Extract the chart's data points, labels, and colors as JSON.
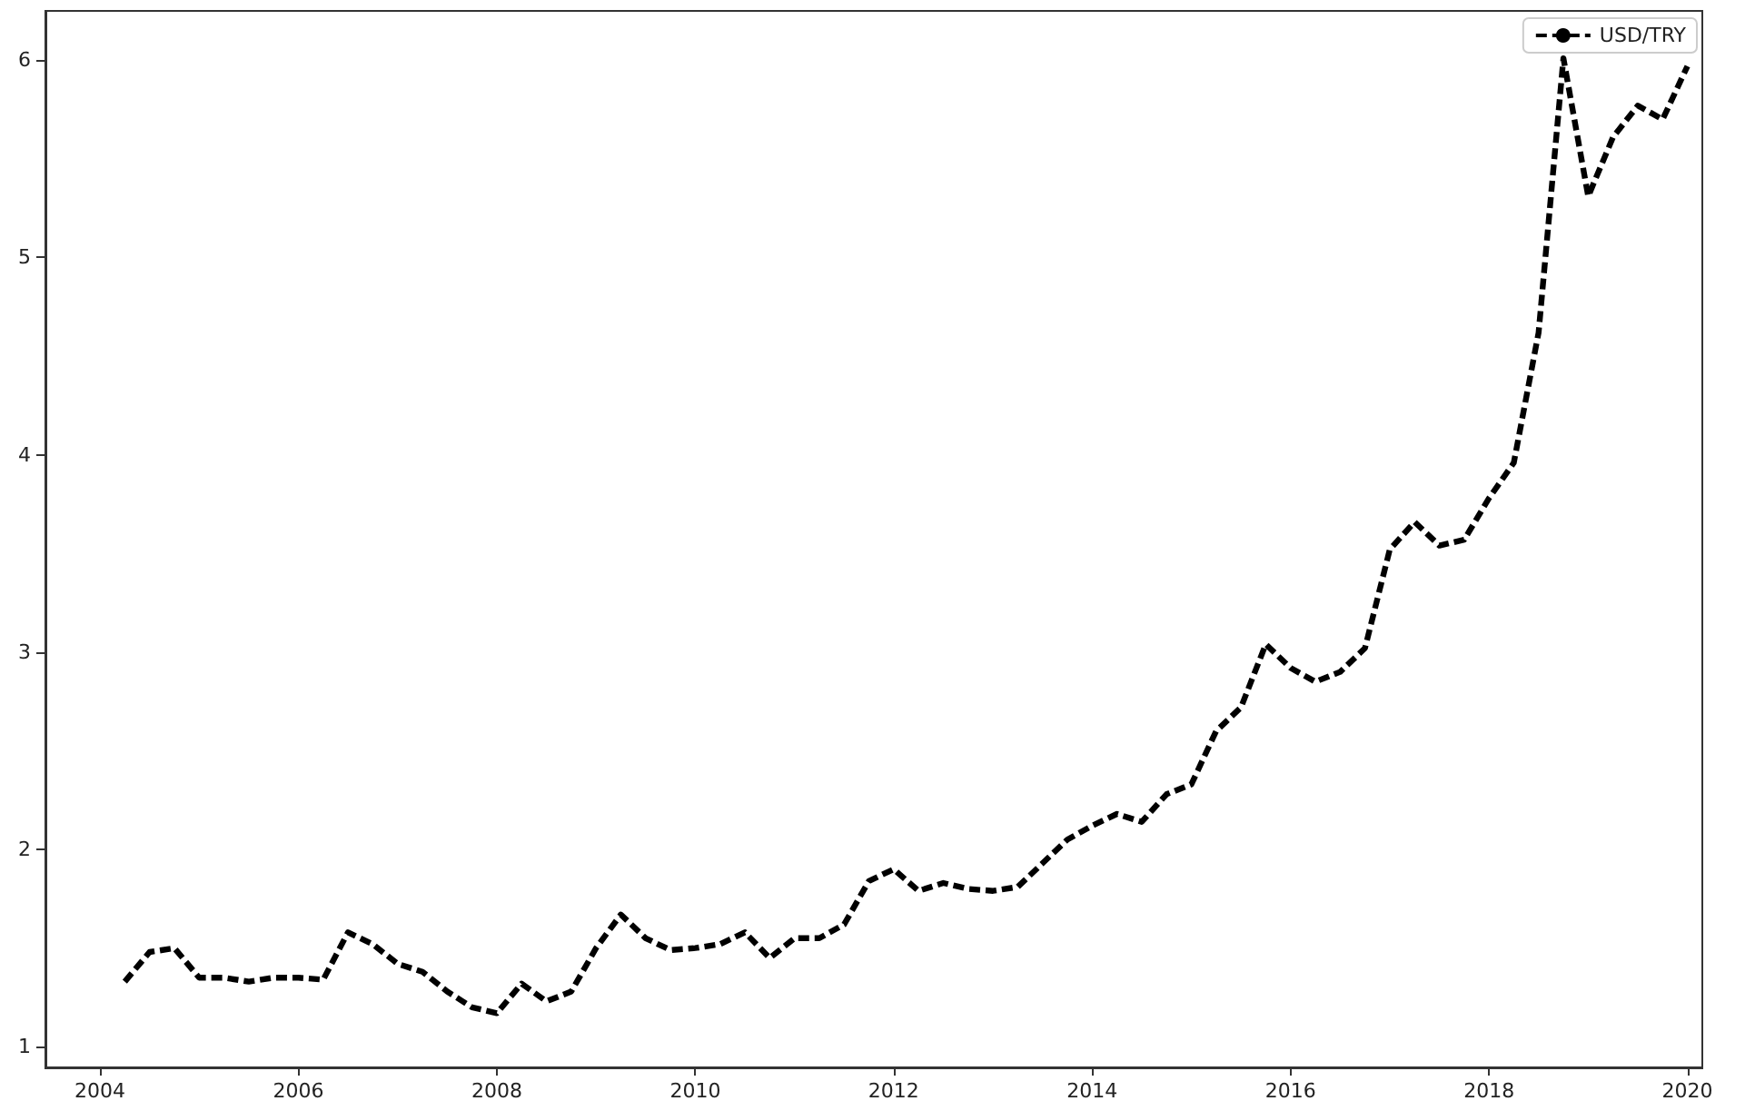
{
  "chart_data": {
    "type": "line",
    "line_style": "dashed",
    "marker": "none",
    "grid": false,
    "legend": "top right",
    "x": [
      2004.25,
      2004.5,
      2004.75,
      2005.0,
      2005.25,
      2005.5,
      2005.75,
      2006.0,
      2006.25,
      2006.5,
      2006.75,
      2007.0,
      2007.25,
      2007.5,
      2007.75,
      2008.0,
      2008.25,
      2008.5,
      2008.75,
      2009.0,
      2009.25,
      2009.5,
      2009.75,
      2010.0,
      2010.25,
      2010.5,
      2010.75,
      2011.0,
      2011.25,
      2011.5,
      2011.75,
      2012.0,
      2012.25,
      2012.5,
      2012.75,
      2013.0,
      2013.25,
      2013.5,
      2013.75,
      2014.0,
      2014.25,
      2014.5,
      2014.75,
      2015.0,
      2015.25,
      2015.5,
      2015.75,
      2016.0,
      2016.25,
      2016.5,
      2016.75,
      2017.0,
      2017.25,
      2017.5,
      2017.75,
      2018.0,
      2018.25,
      2018.5,
      2018.75,
      2019.0,
      2019.25,
      2019.5,
      2019.75,
      2020.0
    ],
    "series": [
      {
        "name": "USD/TRY",
        "color": "#000000",
        "values": [
          1.33,
          1.48,
          1.5,
          1.35,
          1.35,
          1.33,
          1.35,
          1.35,
          1.34,
          1.58,
          1.52,
          1.42,
          1.38,
          1.28,
          1.2,
          1.17,
          1.32,
          1.23,
          1.28,
          1.5,
          1.67,
          1.55,
          1.49,
          1.5,
          1.52,
          1.58,
          1.45,
          1.55,
          1.55,
          1.62,
          1.84,
          1.9,
          1.79,
          1.83,
          1.8,
          1.79,
          1.81,
          1.93,
          2.05,
          2.12,
          2.18,
          2.14,
          2.28,
          2.33,
          2.6,
          2.72,
          3.04,
          2.92,
          2.85,
          2.9,
          3.02,
          3.52,
          3.66,
          3.54,
          3.57,
          3.78,
          3.96,
          4.62,
          6.01,
          5.31,
          5.61,
          5.77,
          5.7,
          5.97
        ]
      }
    ],
    "xlim": [
      2003.45,
      2020.15
    ],
    "xticks": [
      2004,
      2006,
      2008,
      2010,
      2012,
      2014,
      2016,
      2018,
      2020
    ],
    "ylim": [
      0.9,
      6.25
    ],
    "yticks": [
      1,
      2,
      3,
      4,
      5,
      6
    ]
  }
}
